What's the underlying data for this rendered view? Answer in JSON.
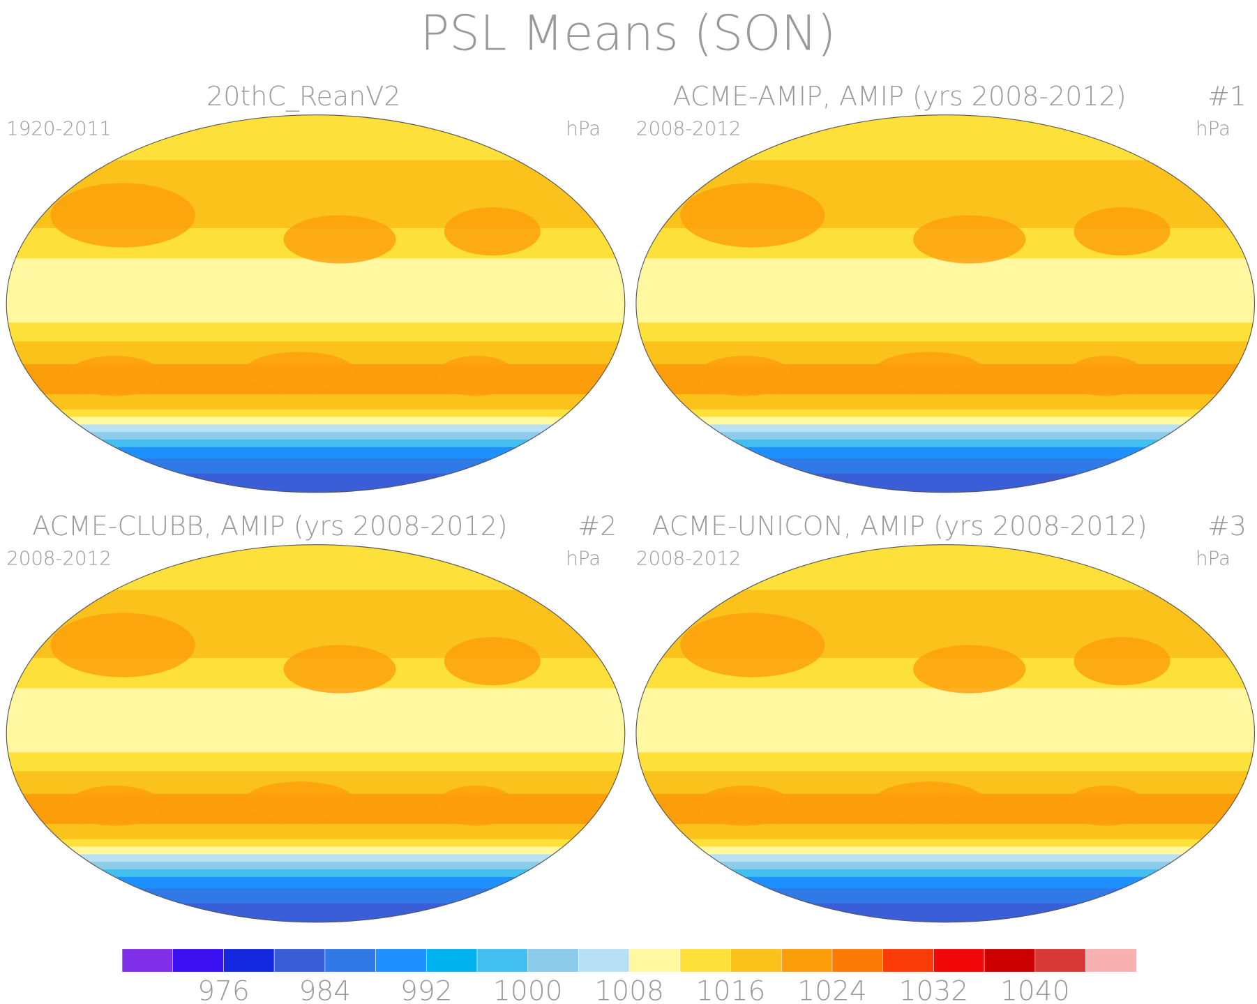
{
  "title": "PSL Means (SON)",
  "panels": [
    {
      "title": "20thC_ReanV2",
      "left": "1920-2011",
      "right": "hPa"
    },
    {
      "title": "ACME-AMIP, AMIP (yrs 2008-2012)",
      "left": "2008-2012",
      "right": "hPa",
      "tag": "#1"
    },
    {
      "title": "ACME-CLUBB, AMIP (yrs 2008-2012)",
      "left": "2008-2012",
      "right": "hPa",
      "tag": "#2"
    },
    {
      "title": "ACME-UNICON, AMIP (yrs 2008-2012)",
      "left": "2008-2012",
      "right": "hPa",
      "tag": "#3"
    }
  ],
  "colorbar": {
    "colors": [
      "#8030e8",
      "#3a10f0",
      "#1428e0",
      "#3a5ed8",
      "#2f7ae6",
      "#1e90ff",
      "#00b2ee",
      "#40bff0",
      "#8ccbea",
      "#b8e0f4",
      "#fff8a0",
      "#fde03a",
      "#fcc21c",
      "#fc9e0a",
      "#fb7a06",
      "#fa3c08",
      "#f20808",
      "#cc0000",
      "#d83838",
      "#f8b0b0"
    ],
    "ticks": [
      976,
      984,
      992,
      1000,
      1008,
      1016,
      1024,
      1032,
      1040
    ]
  }
}
